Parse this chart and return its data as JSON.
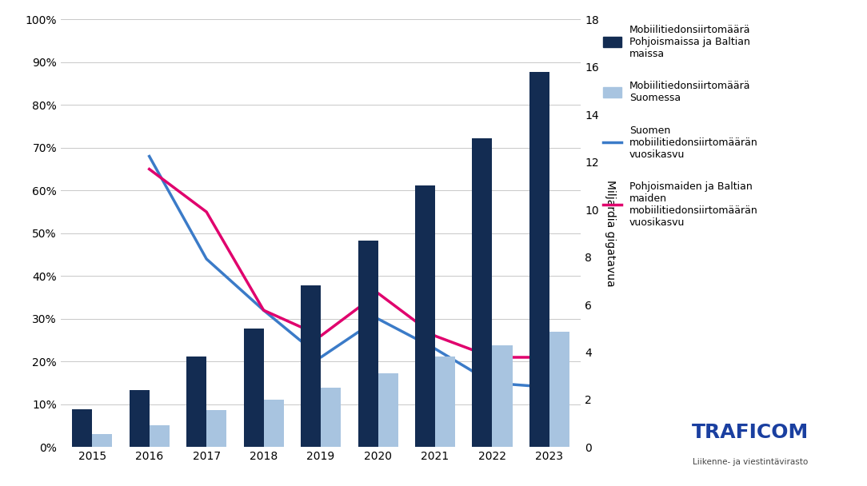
{
  "years": [
    2015,
    2016,
    2017,
    2018,
    2019,
    2020,
    2021,
    2022,
    2023
  ],
  "bar_nordics_baltics": [
    1.6,
    2.4,
    3.8,
    5.0,
    6.8,
    8.7,
    11.0,
    13.0,
    15.8
  ],
  "bar_finland": [
    0.55,
    0.92,
    1.55,
    2.0,
    2.5,
    3.1,
    3.8,
    4.3,
    4.85
  ],
  "line_finland_growth": [
    68,
    44,
    32,
    21,
    30,
    23,
    15,
    14
  ],
  "line_nordics_growth": [
    65,
    55,
    32,
    26,
    36,
    26,
    21,
    21
  ],
  "bar_dark_color": "#132C52",
  "bar_light_color": "#A8C4E0",
  "line_finland_color": "#3B7BC8",
  "line_nordics_color": "#E0006D",
  "background_color": "#FFFFFF",
  "grid_color": "#C8C8C8",
  "right_ylabel": "Miljardia gigatavua",
  "left_ylim": [
    0,
    100
  ],
  "right_ylim": [
    0,
    18
  ],
  "left_yticks": [
    0,
    10,
    20,
    30,
    40,
    50,
    60,
    70,
    80,
    90,
    100
  ],
  "right_yticks": [
    0,
    2,
    4,
    6,
    8,
    10,
    12,
    14,
    16,
    18
  ],
  "legend_labels": [
    "Mobiilitiedonsiirtomäärä\nPohjoismaissa ja Baltian\nmaissa",
    "Mobiilitiedonsiirtomäärä\nSuomessa",
    "Suomen\nmobiilitiedonsiirtomäärän\nvuosikasvu",
    "Pohjoismaiden ja Baltian\nmaiden\nmobiilitiedonsiirtomäärän\nvuosikasvu"
  ],
  "traficom_text": "TRAFICOM",
  "traficom_sub": "Liikenne- ja viestintävirasto",
  "bar_width": 0.35
}
